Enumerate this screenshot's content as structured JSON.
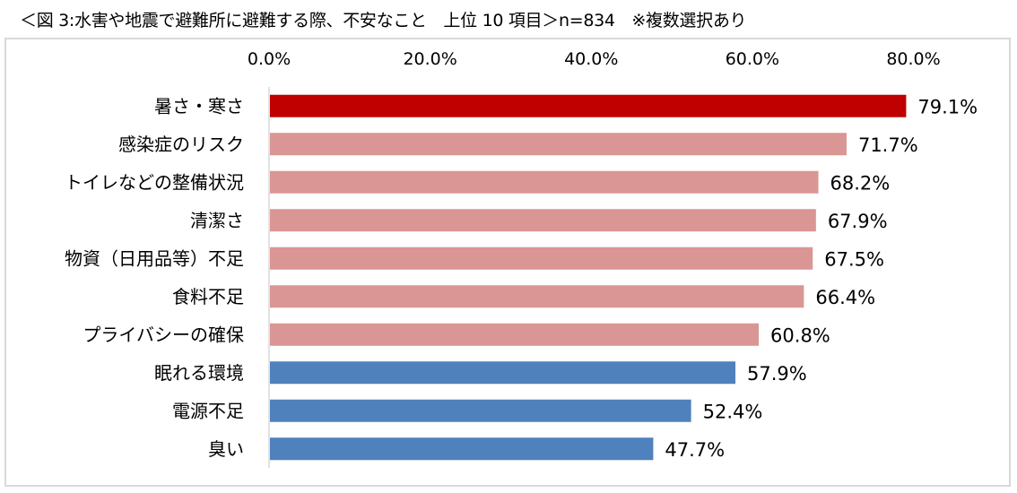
{
  "chart_data": {
    "type": "bar",
    "orientation": "horizontal",
    "title": "＜図 3:水害や地震で避難所に避難する際、不安なこと　上位 10 項目＞n=834　※複数選択あり",
    "xlim": [
      0,
      80
    ],
    "xticks": [
      0,
      20,
      40,
      60,
      80
    ],
    "xtick_labels": [
      "0.0%",
      "20.0%",
      "40.0%",
      "60.0%",
      "80.0%"
    ],
    "xaxis_position": "top",
    "grid": false,
    "categories": [
      "暑さ・寒さ",
      "感染症のリスク",
      "トイレなどの整備状況",
      "清潔さ",
      "物資（日用品等）不足",
      "食料不足",
      "プライバシーの確保",
      "眠れる環境",
      "電源不足",
      "臭い"
    ],
    "values": [
      79.1,
      71.7,
      68.2,
      67.9,
      67.5,
      66.4,
      60.8,
      57.9,
      52.4,
      47.7
    ],
    "data_labels": [
      "79.1%",
      "71.7%",
      "68.2%",
      "67.9%",
      "67.5%",
      "66.4%",
      "60.8%",
      "57.9%",
      "52.4%",
      "47.7%"
    ],
    "bar_colors": [
      "#c00000",
      "#da9694",
      "#da9694",
      "#da9694",
      "#da9694",
      "#da9694",
      "#da9694",
      "#4f81bd",
      "#4f81bd",
      "#4f81bd"
    ]
  }
}
